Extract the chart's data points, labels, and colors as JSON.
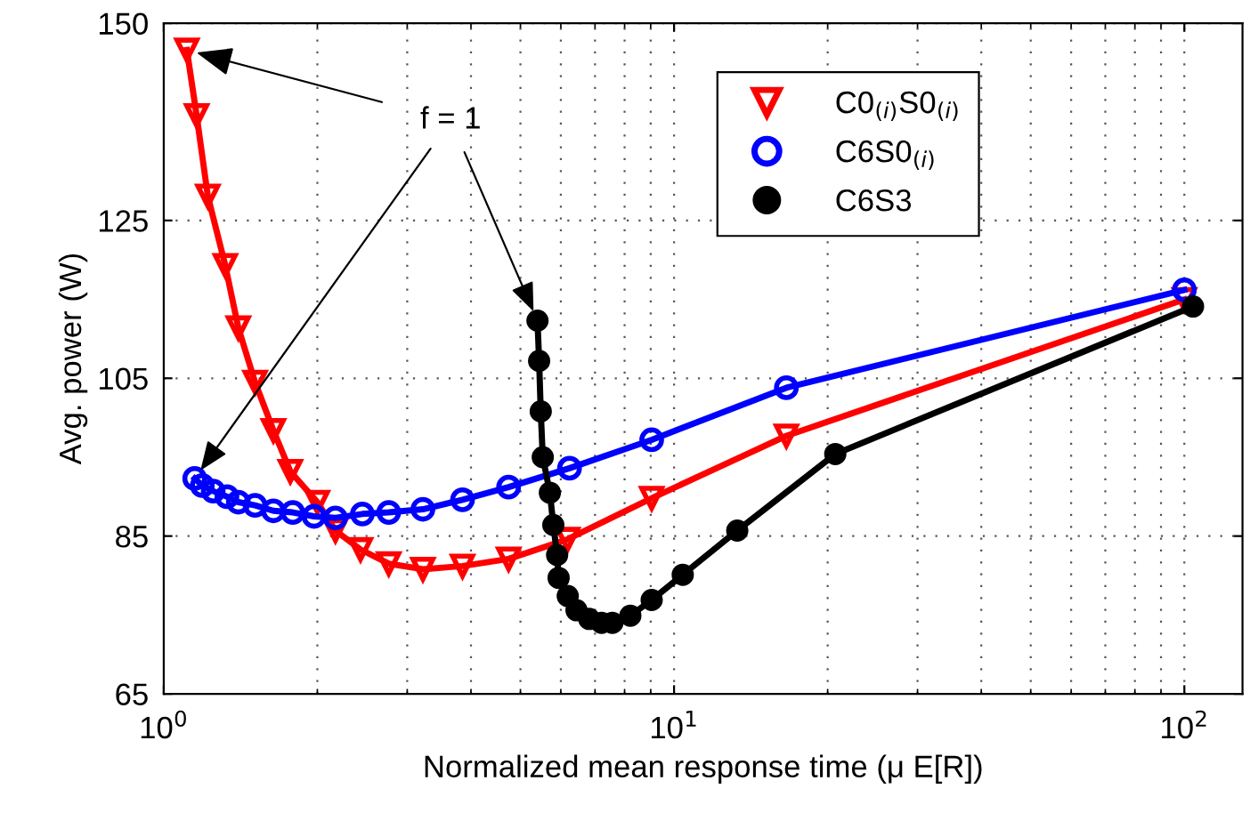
{
  "chart_data": {
    "type": "line",
    "xlabel": "Normalized mean response time (μ E[R])",
    "ylabel": "Avg. power (W)",
    "log": "x",
    "xlim": [
      1,
      130
    ],
    "xticks": [
      {
        "value": 1,
        "label": "10$^{0}$"
      },
      {
        "value": 10,
        "label": "10$^{1}$"
      },
      {
        "value": 100,
        "label": "10$^{2}$"
      }
    ],
    "ylim": [
      65,
      150
    ],
    "yticks": [
      65,
      85,
      105,
      125,
      150
    ],
    "grid": true,
    "legend": "top right",
    "line_style": "solid",
    "annotations": [
      {
        "text": "f = 1",
        "x": 1.11,
        "y": 146.6
      }
    ],
    "series": [
      {
        "name": "C0$_{(i)}$S0$_{(i)}$",
        "color": "#ff0000",
        "marker": "triangle",
        "x": [
          1.11,
          1.16,
          1.22,
          1.32,
          1.4,
          1.51,
          1.64,
          1.77,
          2.0,
          2.17,
          2.43,
          2.76,
          3.22,
          3.85,
          4.74,
          6.19,
          9.04,
          16.6,
          100
        ],
        "values": [
          146.6,
          138.3,
          128.1,
          119.3,
          111.4,
          104.5,
          98.4,
          93.2,
          89.3,
          85.7,
          83.3,
          81.5,
          80.8,
          81.2,
          82.1,
          84.6,
          89.8,
          97.7,
          115.0
        ]
      },
      {
        "name": "C6S0$_{(i)}$",
        "color": "#0000ff",
        "marker": "circle",
        "x": [
          1.15,
          1.19,
          1.25,
          1.33,
          1.4,
          1.51,
          1.64,
          1.79,
          1.97,
          2.17,
          2.45,
          2.76,
          3.22,
          3.85,
          4.74,
          6.24,
          9.04,
          16.6,
          100
        ],
        "values": [
          92.3,
          91.4,
          90.7,
          90.0,
          89.3,
          88.9,
          88.2,
          88.0,
          87.5,
          87.3,
          87.8,
          88.0,
          88.4,
          89.6,
          91.2,
          93.6,
          97.2,
          103.8,
          116.2
        ]
      },
      {
        "name": "C6S3",
        "color": "#000000",
        "marker": "circle",
        "x": [
          5.4,
          5.44,
          5.48,
          5.53,
          5.71,
          5.8,
          5.9,
          5.94,
          6.19,
          6.44,
          6.82,
          7.21,
          7.57,
          8.21,
          9.04,
          10.4,
          13.3,
          20.7,
          104
        ],
        "values": [
          112.3,
          107.2,
          100.8,
          95.0,
          90.5,
          86.4,
          82.6,
          79.7,
          77.4,
          75.6,
          74.5,
          74.0,
          74.0,
          74.9,
          76.9,
          80.1,
          85.7,
          95.4,
          114.1
        ]
      }
    ]
  }
}
